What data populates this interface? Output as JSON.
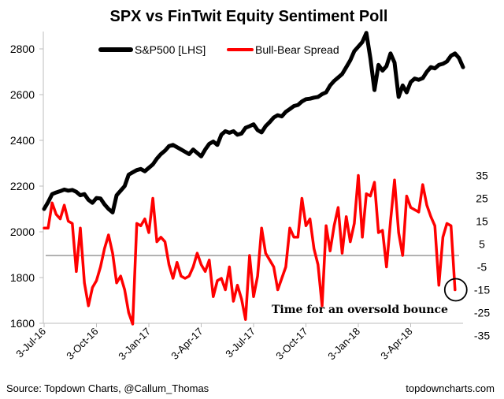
{
  "chart_data": {
    "type": "line",
    "title": "SPX vs FinTwit Equity Sentiment Poll",
    "x_tick_labels": [
      "3-Jul-16",
      "3-Oct-16",
      "3-Jan-17",
      "3-Apr-17",
      "3-Jul-17",
      "3-Oct-17",
      "3-Jan-18",
      "3-Apr-18"
    ],
    "y_left": {
      "ticks": [
        1600,
        1800,
        2000,
        2200,
        2400,
        2600,
        2800
      ],
      "ylim": [
        1600,
        2900
      ]
    },
    "y_right": {
      "ticks": [
        -35,
        -25,
        -15,
        -5,
        5,
        15,
        25,
        35
      ],
      "ylim": [
        -35,
        41
      ]
    },
    "legend": {
      "position": "top",
      "entries": [
        "S&P500 [LHS]",
        "Bull-Bear Spread"
      ]
    },
    "grid": false,
    "reference_line": {
      "axis": "right",
      "value": 0,
      "color": "#999999"
    },
    "annotation": "Time for an oversold bounce",
    "footer_left": "Source: Topdown Charts, @Callum_Thomas",
    "footer_right": "topdowncharts.com",
    "series": [
      {
        "name": "S&P500 [LHS]",
        "axis": "left",
        "color": "#000000",
        "values": [
          2100,
          2130,
          2165,
          2172,
          2178,
          2185,
          2180,
          2183,
          2175,
          2160,
          2165,
          2140,
          2127,
          2148,
          2146,
          2120,
          2100,
          2085,
          2160,
          2180,
          2200,
          2250,
          2260,
          2270,
          2275,
          2265,
          2280,
          2295,
          2320,
          2340,
          2355,
          2375,
          2380,
          2370,
          2360,
          2350,
          2340,
          2360,
          2345,
          2330,
          2360,
          2385,
          2395,
          2380,
          2425,
          2440,
          2433,
          2440,
          2425,
          2430,
          2455,
          2462,
          2470,
          2445,
          2435,
          2462,
          2480,
          2500,
          2510,
          2505,
          2525,
          2537,
          2550,
          2555,
          2570,
          2580,
          2582,
          2587,
          2590,
          2602,
          2610,
          2640,
          2660,
          2675,
          2690,
          2720,
          2750,
          2790,
          2810,
          2830,
          2870,
          2760,
          2620,
          2730,
          2705,
          2725,
          2780,
          2740,
          2590,
          2640,
          2610,
          2655,
          2670,
          2665,
          2672,
          2700,
          2720,
          2715,
          2730,
          2735,
          2745,
          2770,
          2780,
          2760,
          2720
        ]
      },
      {
        "name": "Bull-Bear Spread",
        "axis": "right",
        "color": "#ff0000",
        "values": [
          12,
          12,
          23,
          18,
          16,
          22,
          15,
          14,
          -7,
          12,
          -12,
          -22,
          -14,
          -11,
          -5,
          3,
          9,
          1,
          -12,
          -9,
          -15,
          -25,
          -30,
          14,
          13,
          16,
          10,
          25,
          6,
          8,
          6,
          -4,
          -10,
          -3,
          -9,
          -10,
          -9,
          -5,
          1,
          -4,
          -7,
          -2,
          -18,
          -11,
          -10,
          -15,
          -5,
          -20,
          -13,
          -19,
          -28,
          0,
          -18,
          -9,
          12,
          1,
          -2,
          -5,
          -15,
          -10,
          -5,
          12,
          8,
          8,
          25,
          13,
          16,
          3,
          -4,
          -22,
          13,
          2,
          13,
          21,
          1,
          17,
          6,
          14,
          35,
          8,
          27,
          26,
          32,
          10,
          11,
          -5,
          15,
          33,
          10,
          0,
          26,
          21,
          20,
          19,
          31,
          22,
          17,
          13,
          -13,
          8,
          14,
          13,
          -15
        ]
      }
    ]
  }
}
